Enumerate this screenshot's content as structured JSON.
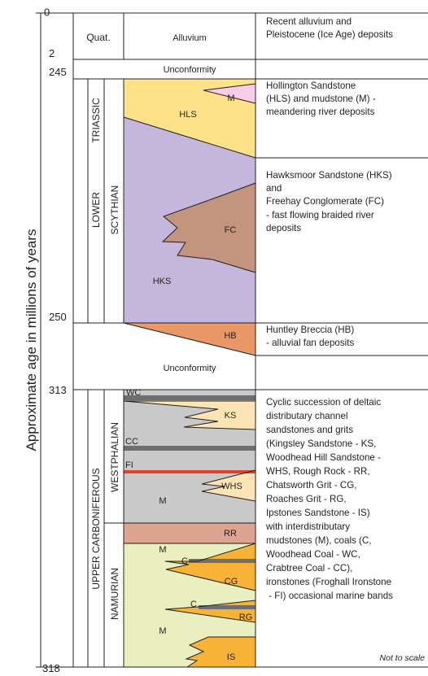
{
  "y_axis_label": "Approximate age in millions of years",
  "age_ticks": [
    "0",
    "2",
    "245",
    "250",
    "313",
    "318"
  ],
  "periods": {
    "quat": "Quat.",
    "triassic": "TRIASSIC",
    "lower": "LOWER",
    "scythian": "SCYTHIAN",
    "upper_carboniferous": "UPPER CARBONIFEROUS",
    "westphalian": "WESTPHALIAN",
    "namurian": "NAMURIAN"
  },
  "column_labels": {
    "alluvium": "Alluvium",
    "unconformity_1": "Unconformity",
    "unconformity_2": "Unconformity"
  },
  "unit_labels": {
    "M_triassic": "M",
    "HLS": "HLS",
    "FC": "FC",
    "HKS": "HKS",
    "HB": "HB",
    "WC": "WC",
    "KS": "KS",
    "CC": "CC",
    "FI": "FI",
    "WHS": "WHS",
    "M_westphalian": "M",
    "RR": "RR",
    "M_namurian_1": "M",
    "C_1": "C",
    "CG": "CG",
    "C_2": "C",
    "RG": "RG",
    "M_namurian_2": "M",
    "IS": "IS"
  },
  "descriptions": {
    "alluvium": [
      "Recent alluvium and",
      "Pleistocene (Ice Age) deposits"
    ],
    "hollington": [
      "Hollington Sandstone",
      "(HLS) and mudstone (M) -",
      "meandering river deposits"
    ],
    "hawksmoor": [
      "Hawksmoor Sandstone (HKS)",
      "and",
      "Freehay Conglomerate (FC)",
      "- fast flowing braided river",
      "deposits"
    ],
    "huntley": [
      "Huntley Breccia (HB)",
      "- alluvial fan deposits"
    ],
    "cyclic": [
      "Cyclic succession of deltaic",
      "distributary channel",
      "sandstones and grits",
      "(Kingsley Sandstone - KS,",
      "Woodhead Hill Sandstone -",
      "WHS, Rough Rock - RR,",
      "Chatsworth Grit - CG,",
      "Roaches Grit - RG,",
      "Ipstones Sandstone - IS)",
      "with interdistributary",
      "mudstones (M), coals (C,",
      "Woodhead Coal - WC,",
      "Crabtree Coal - CC),",
      "ironstones (Froghall Ironstone",
      " - FI) occasional marine bands"
    ]
  },
  "note": "Not to scale",
  "colors": {
    "triassic_sandstone": "#fde28a",
    "triassic_mudstone": "#f6cce6",
    "hawksmoor": "#c5b6db",
    "freehay": "#c4957e",
    "huntley": "#ea9868",
    "westphalian_mud": "#c9c9c9",
    "westphalian_sand": "#fde4b5",
    "coal": "#6d6e70",
    "ironstone": "#e0422a",
    "rough_rock": "#dea48f",
    "namurian_mud": "#eaefc0",
    "namurian_grit": "#f7b335",
    "lines": "#231f20"
  }
}
